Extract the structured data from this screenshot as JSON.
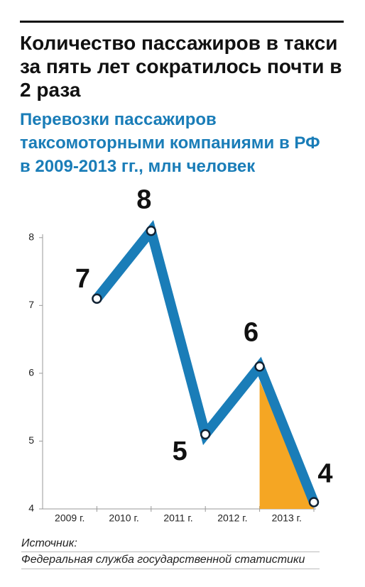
{
  "chart_data": {
    "type": "line",
    "title": "Количество пассажиров в такси за пять лет сократилось почти в 2 раза",
    "subtitle": "Перевозки пассажиров таксомоторными компаниями в РФ в 2009-2013 гг., млн человек",
    "categories": [
      "2009 г.",
      "2010 г.",
      "2011 г.",
      "2012 г.",
      "2013 г."
    ],
    "values": [
      7.1,
      8.1,
      5.1,
      6.1,
      4.1
    ],
    "value_labels": [
      "7",
      "8",
      "5",
      "6",
      "4"
    ],
    "color": "#1a7db8",
    "highlight_color": "#f5a623",
    "ylim": [
      4,
      8.05
    ],
    "yticks": [
      4,
      5,
      6,
      7,
      8
    ],
    "source_label": "Источник:",
    "source": "Федеральная служба государственной статистики"
  }
}
